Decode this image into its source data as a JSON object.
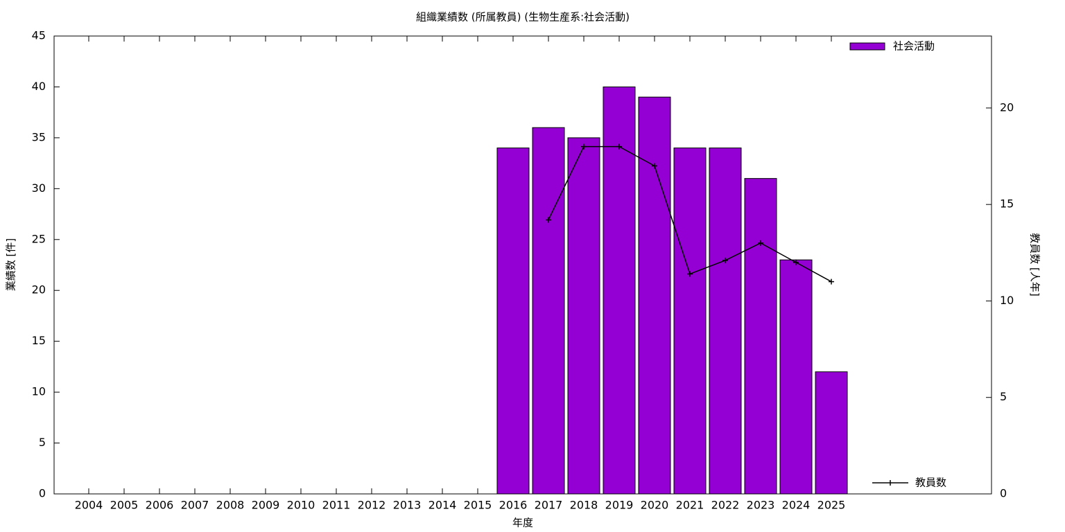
{
  "chart_data": {
    "type": "bar_line",
    "title": "組織業績数 (所属教員) (生物生産系:社会活動)",
    "x_label": "年度",
    "y_label": "業績数 [件]",
    "y2_label": "教員数 [人年]",
    "categories": [
      "2004",
      "2005",
      "2006",
      "2007",
      "2008",
      "2009",
      "2010",
      "2011",
      "2012",
      "2013",
      "2014",
      "2015",
      "2016",
      "2017",
      "2018",
      "2019",
      "2020",
      "2021",
      "2022",
      "2023",
      "2024",
      "2025"
    ],
    "series": [
      {
        "name": "社会活動",
        "type": "bar",
        "color": "#9400d3",
        "values": [
          null,
          null,
          null,
          null,
          null,
          null,
          null,
          null,
          null,
          null,
          null,
          null,
          34,
          36,
          35,
          40,
          39,
          34,
          34,
          31,
          23,
          12
        ]
      },
      {
        "name": "教員数",
        "type": "line",
        "axis": "y2",
        "color": "#000000",
        "values": [
          null,
          null,
          null,
          null,
          null,
          null,
          null,
          null,
          null,
          null,
          null,
          null,
          null,
          14.2,
          18,
          18,
          17,
          11.4,
          12.1,
          13,
          12,
          11
        ]
      }
    ],
    "ylim": [
      0,
      45
    ],
    "yticks": [
      0,
      5,
      10,
      15,
      20,
      25,
      30,
      35,
      40,
      45
    ],
    "y2lim": [
      0,
      23.73
    ],
    "y2ticks": [
      0,
      5,
      10,
      15,
      20
    ]
  }
}
